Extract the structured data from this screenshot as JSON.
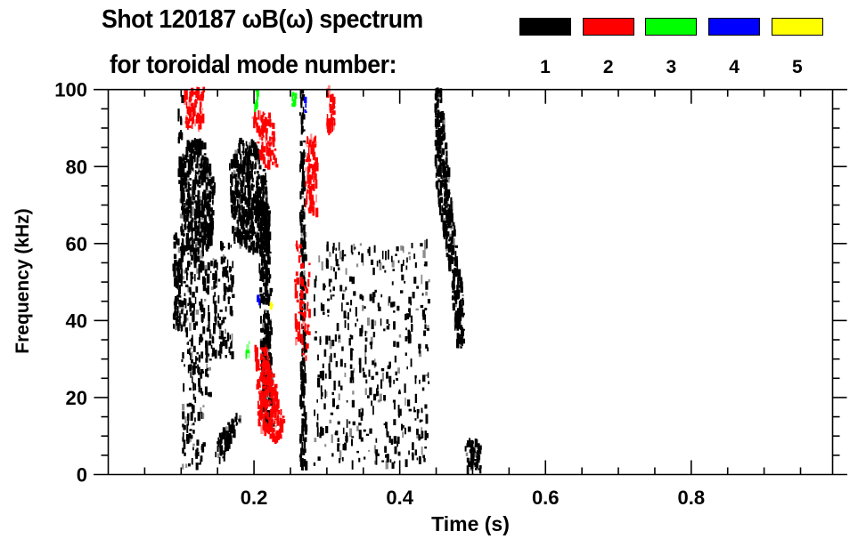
{
  "chart_data": {
    "type": "heatmap",
    "title": "Shot 120187 ωB(ω) spectrum",
    "subtitle": "for toroidal mode number:",
    "xlabel": "Time (s)",
    "ylabel": "Frequency (kHz)",
    "xlim": [
      0,
      0.994
    ],
    "ylim": [
      0,
      100
    ],
    "xticks": [
      0.2,
      0.4,
      0.6,
      0.8
    ],
    "xtick_labels": [
      "0.2",
      "0.4",
      "0.6",
      "0.8"
    ],
    "yticks": [
      0,
      20,
      40,
      60,
      80,
      100
    ],
    "ytick_labels": [
      "0",
      "20",
      "40",
      "60",
      "80",
      "100"
    ],
    "legend": [
      {
        "mode": "1",
        "color": "#000000"
      },
      {
        "mode": "2",
        "color": "#ff0000"
      },
      {
        "mode": "3",
        "color": "#00ff00"
      },
      {
        "mode": "4",
        "color": "#0000ff"
      },
      {
        "mode": "5",
        "color": "#ffff00"
      }
    ],
    "regions": [
      {
        "mode": 1,
        "density": 1.0,
        "poly": [
          [
            0.095,
            80
          ],
          [
            0.11,
            87
          ],
          [
            0.13,
            86
          ],
          [
            0.145,
            75
          ],
          [
            0.14,
            60
          ],
          [
            0.12,
            55
          ],
          [
            0.1,
            58
          ]
        ]
      },
      {
        "mode": 1,
        "density": 0.8,
        "poly": [
          [
            0.088,
            63
          ],
          [
            0.1,
            63
          ],
          [
            0.1,
            38
          ],
          [
            0.088,
            38
          ]
        ]
      },
      {
        "mode": 1,
        "density": 0.35,
        "poly": [
          [
            0.095,
            100
          ],
          [
            0.1,
            100
          ],
          [
            0.102,
            80
          ],
          [
            0.095,
            80
          ]
        ]
      },
      {
        "mode": 1,
        "density": 0.3,
        "poly": [
          [
            0.1,
            55
          ],
          [
            0.15,
            55
          ],
          [
            0.14,
            20
          ],
          [
            0.1,
            20
          ]
        ]
      },
      {
        "mode": 1,
        "density": 0.25,
        "poly": [
          [
            0.1,
            20
          ],
          [
            0.13,
            20
          ],
          [
            0.13,
            2
          ],
          [
            0.1,
            2
          ]
        ]
      },
      {
        "mode": 1,
        "density": 1.0,
        "poly": [
          [
            0.165,
            80
          ],
          [
            0.18,
            87
          ],
          [
            0.2,
            86
          ],
          [
            0.215,
            78
          ],
          [
            0.22,
            60
          ],
          [
            0.2,
            58
          ],
          [
            0.17,
            60
          ]
        ]
      },
      {
        "mode": 1,
        "density": 0.9,
        "poly": [
          [
            0.205,
            70
          ],
          [
            0.22,
            70
          ],
          [
            0.225,
            12
          ],
          [
            0.21,
            12
          ]
        ]
      },
      {
        "mode": 1,
        "density": 0.3,
        "poly": [
          [
            0.14,
            60
          ],
          [
            0.17,
            60
          ],
          [
            0.17,
            30
          ],
          [
            0.145,
            30
          ]
        ]
      },
      {
        "mode": 1,
        "density": 0.9,
        "poly": [
          [
            0.262,
            100
          ],
          [
            0.268,
            100
          ],
          [
            0.27,
            2
          ],
          [
            0.262,
            2
          ]
        ]
      },
      {
        "mode": 1,
        "density": 0.9,
        "poly": [
          [
            0.145,
            4
          ],
          [
            0.15,
            10
          ],
          [
            0.175,
            16
          ],
          [
            0.18,
            14
          ],
          [
            0.155,
            3
          ]
        ]
      },
      {
        "mode": 1,
        "density": 1.0,
        "poly": [
          [
            0.447,
            100
          ],
          [
            0.455,
            100
          ],
          [
            0.47,
            70
          ],
          [
            0.486,
            45
          ],
          [
            0.487,
            33
          ],
          [
            0.478,
            33
          ],
          [
            0.465,
            55
          ],
          [
            0.448,
            75
          ]
        ]
      },
      {
        "mode": 1,
        "density": 0.9,
        "poly": [
          [
            0.488,
            9
          ],
          [
            0.51,
            9
          ],
          [
            0.51,
            1
          ],
          [
            0.488,
            1
          ]
        ]
      },
      {
        "mode": 1,
        "density": 0.12,
        "poly": [
          [
            0.28,
            60
          ],
          [
            0.44,
            60
          ],
          [
            0.44,
            2
          ],
          [
            0.28,
            2
          ]
        ]
      },
      {
        "mode": 2,
        "density": 1.0,
        "poly": [
          [
            0.2,
            33
          ],
          [
            0.215,
            33
          ],
          [
            0.24,
            15
          ],
          [
            0.235,
            8
          ],
          [
            0.205,
            12
          ]
        ]
      },
      {
        "mode": 2,
        "density": 0.8,
        "poly": [
          [
            0.103,
            100
          ],
          [
            0.13,
            100
          ],
          [
            0.128,
            90
          ],
          [
            0.105,
            90
          ]
        ]
      },
      {
        "mode": 2,
        "density": 0.8,
        "poly": [
          [
            0.195,
            94
          ],
          [
            0.225,
            94
          ],
          [
            0.23,
            80
          ],
          [
            0.21,
            80
          ]
        ]
      },
      {
        "mode": 2,
        "density": 0.8,
        "poly": [
          [
            0.27,
            88
          ],
          [
            0.285,
            88
          ],
          [
            0.285,
            68
          ],
          [
            0.27,
            68
          ]
        ]
      },
      {
        "mode": 2,
        "density": 0.8,
        "poly": [
          [
            0.298,
            100
          ],
          [
            0.31,
            100
          ],
          [
            0.31,
            89
          ],
          [
            0.298,
            89
          ]
        ]
      },
      {
        "mode": 2,
        "density": 0.3,
        "poly": [
          [
            0.255,
            60
          ],
          [
            0.275,
            60
          ],
          [
            0.275,
            30
          ],
          [
            0.255,
            30
          ]
        ]
      },
      {
        "mode": 3,
        "density": 0.9,
        "poly": [
          [
            0.2,
            100
          ],
          [
            0.205,
            100
          ],
          [
            0.205,
            95
          ],
          [
            0.2,
            95
          ]
        ]
      },
      {
        "mode": 3,
        "density": 0.7,
        "poly": [
          [
            0.249,
            99
          ],
          [
            0.256,
            99
          ],
          [
            0.256,
            96
          ],
          [
            0.249,
            96
          ]
        ]
      },
      {
        "mode": 3,
        "density": 0.8,
        "poly": [
          [
            0.188,
            35
          ],
          [
            0.193,
            35
          ],
          [
            0.193,
            31
          ],
          [
            0.188,
            31
          ]
        ]
      },
      {
        "mode": 4,
        "density": 0.8,
        "poly": [
          [
            0.203,
            46
          ],
          [
            0.208,
            46
          ],
          [
            0.208,
            44
          ],
          [
            0.203,
            44
          ]
        ]
      },
      {
        "mode": 4,
        "density": 0.6,
        "poly": [
          [
            0.268,
            98
          ],
          [
            0.272,
            98
          ],
          [
            0.272,
            94
          ],
          [
            0.268,
            94
          ]
        ]
      },
      {
        "mode": 5,
        "density": 0.8,
        "poly": [
          [
            0.22,
            44
          ],
          [
            0.223,
            44
          ],
          [
            0.223,
            43
          ],
          [
            0.22,
            43
          ]
        ]
      }
    ]
  }
}
